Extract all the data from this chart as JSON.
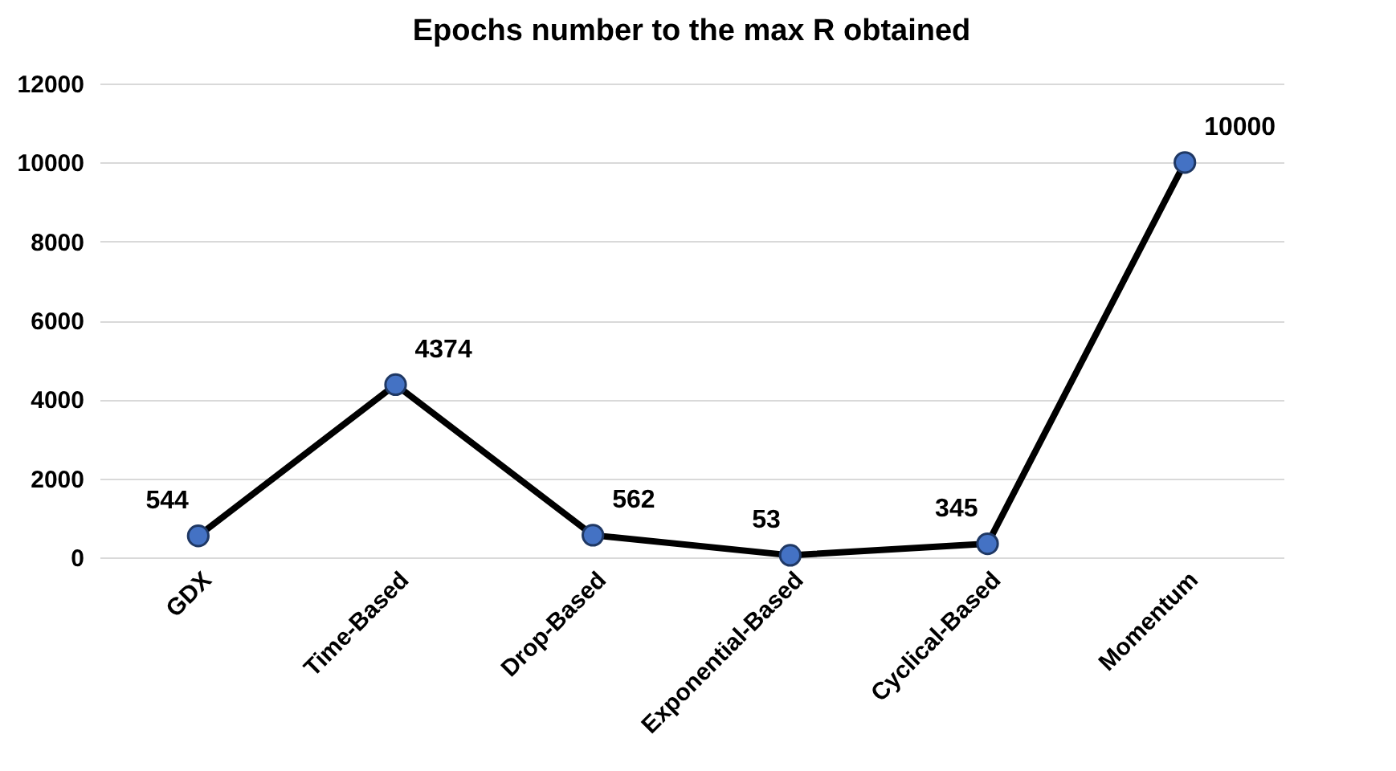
{
  "chart_data": {
    "type": "line",
    "title": "Epochs number to the max R obtained",
    "categories": [
      "GDX",
      "Time-Based",
      "Drop-Based",
      "Exponential-Based",
      "Cyclical-Based",
      "Momentum"
    ],
    "series": [
      {
        "color": "#000000",
        "colors": [
          "#4472c4",
          "#4472c4",
          "#4472c4",
          "#4472c4",
          "#4472c4",
          "#4472c4"
        ],
        "values": [
          544,
          4374,
          562,
          53,
          345,
          10000
        ]
      }
    ],
    "ylim": [
      0,
      12000
    ],
    "yticks": [
      0,
      2000,
      4000,
      6000,
      8000,
      10000,
      12000
    ],
    "grid": "y",
    "marker": "circle",
    "line_style": "solid",
    "data_labels": true
  }
}
